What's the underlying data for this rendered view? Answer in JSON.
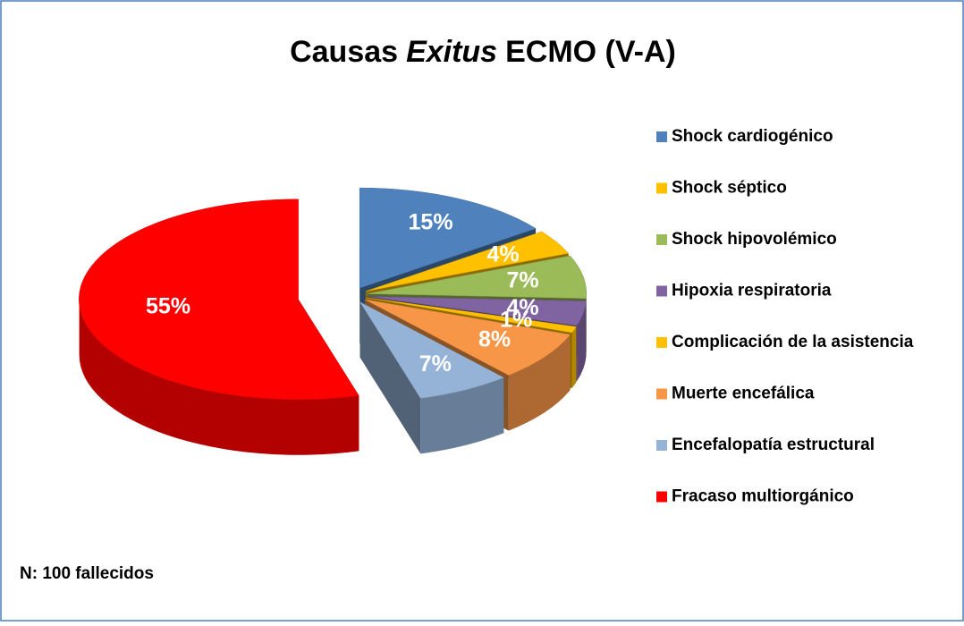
{
  "chart_data": {
    "type": "pie3d",
    "title": [
      "Causas",
      "Exitus",
      "ECMO (V-A)"
    ],
    "title_style": [
      "normal",
      "italic",
      "normal"
    ],
    "categories": [
      "Shock cardiogénico",
      "Shock séptico",
      "Shock hipovolémico",
      "Hipoxia respiratoria",
      "Complicación de la asistencia",
      "Muerte encefálica",
      "Encefalopatía estructural",
      "Fracaso multiorgánico"
    ],
    "values": [
      15,
      4,
      7,
      4,
      1,
      8,
      7,
      55
    ],
    "value_labels": [
      "15%",
      "4%",
      "7%",
      "4%",
      "1%",
      "8%",
      "7%",
      "55%"
    ],
    "colors": [
      "#4f81bd",
      "#ffc000",
      "#9bbb59",
      "#8064a2",
      "#ffc000",
      "#f79646",
      "#95b3d7",
      "#ff0000"
    ],
    "legend": "right",
    "annotation": "N: 100 fallecidos"
  }
}
